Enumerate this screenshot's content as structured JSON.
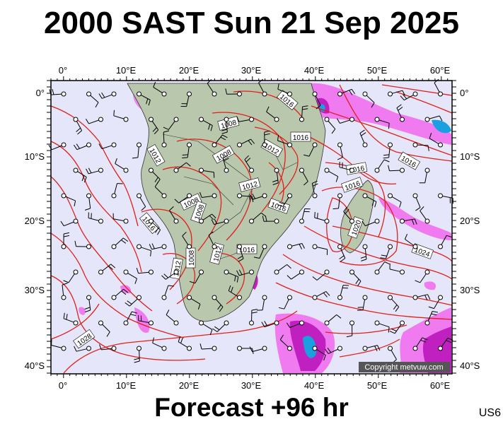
{
  "title": "2000 SAST Sun 21 Sep 2025",
  "footer": "Forecast +96 hr",
  "region_code": "US6",
  "copyright": "Copyright metvuw.com",
  "axes": {
    "lon_labels": [
      "0°",
      "10°E",
      "20°E",
      "30°E",
      "40°E",
      "50°E",
      "60°E"
    ],
    "lat_labels": [
      "0°",
      "10°S",
      "20°S",
      "30°S",
      "40°S"
    ]
  },
  "isobar_labels": [
    "1016",
    "1008",
    "1016",
    "1012",
    "1008",
    "1012",
    "1016",
    "1016",
    "1016",
    "1012",
    "1008",
    "1016",
    "1008",
    "1016",
    "1012",
    "1008",
    "1012",
    "1020",
    "1024",
    "1028",
    "1016"
  ],
  "colors": {
    "sea": "#e6e6fa",
    "land": "#b9c7ad",
    "isobar": "#e0201a",
    "rain_light": "#f07af0",
    "rain_heavy": "#c020c0",
    "rain_core": "#1aa0e0"
  }
}
